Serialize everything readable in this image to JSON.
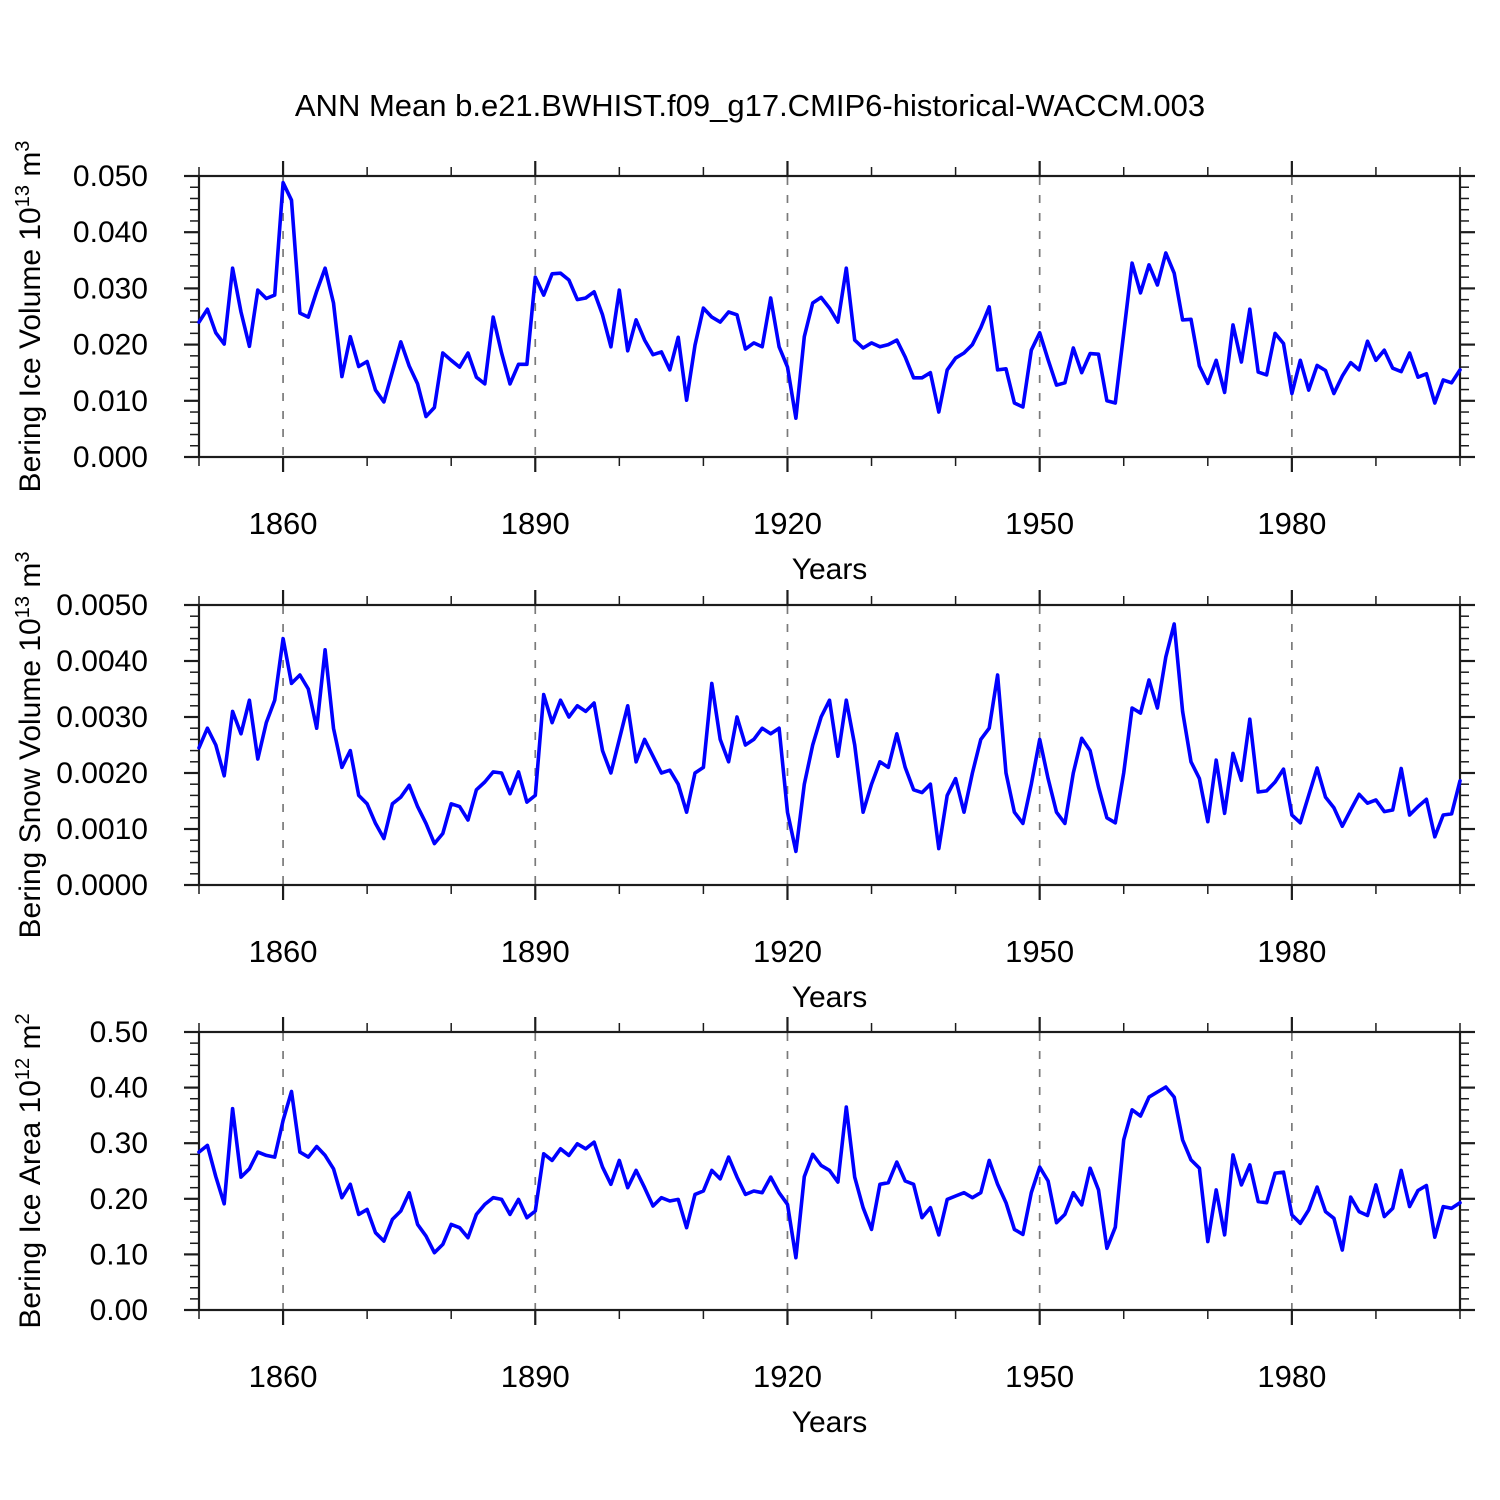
{
  "title": "ANN Mean b.e21.BWHIST.f09_g17.CMIP6-historical-WACCM.003",
  "styles": {
    "line_color": "#0000FF",
    "axis_color": "#1c1c1c",
    "grid_color": "#7a7a7a",
    "text_color": "#000000"
  },
  "chart_data": [
    {
      "type": "line",
      "panel": "bering-ice-volume",
      "ylabel_parts": [
        {
          "text": "Bering Ice Volume 10"
        },
        {
          "text": "13",
          "sup": true
        },
        {
          "text": " m"
        },
        {
          "text": "3",
          "sup": true
        }
      ],
      "xlabel": "Years",
      "x_start": 1850,
      "x_end": 2000,
      "x_step": 1,
      "x_minor_step": 10,
      "x_major_ticks": [
        1860,
        1890,
        1920,
        1950,
        1980
      ],
      "x_tick_labels": [
        "1860",
        "1890",
        "1920",
        "1950",
        "1980"
      ],
      "ylim": [
        0.0,
        0.05
      ],
      "y_major_step": 0.01,
      "y_minor_step": 0.002,
      "y_tick_labels": [
        "0.000",
        "0.010",
        "0.020",
        "0.030",
        "0.040",
        "0.050"
      ],
      "grid": "vertical-dashed-at-major-x",
      "legend": "none",
      "values": [
        0.024,
        0.0263,
        0.0221,
        0.0201,
        0.0336,
        0.0258,
        0.0197,
        0.0297,
        0.0282,
        0.0288,
        0.0488,
        0.0457,
        0.0256,
        0.0249,
        0.0295,
        0.0336,
        0.0274,
        0.0143,
        0.0214,
        0.0161,
        0.017,
        0.0119,
        0.0098,
        0.0152,
        0.0205,
        0.0162,
        0.013,
        0.0072,
        0.0088,
        0.0185,
        0.0172,
        0.016,
        0.0185,
        0.0142,
        0.013,
        0.0249,
        0.0185,
        0.013,
        0.0165,
        0.0165,
        0.032,
        0.0288,
        0.0326,
        0.0327,
        0.0315,
        0.028,
        0.0283,
        0.0294,
        0.0253,
        0.0196,
        0.0297,
        0.0189,
        0.0244,
        0.0208,
        0.0182,
        0.0187,
        0.0155,
        0.0213,
        0.0101,
        0.0199,
        0.0265,
        0.0249,
        0.024,
        0.0258,
        0.0253,
        0.0192,
        0.0203,
        0.0196,
        0.0283,
        0.0196,
        0.016,
        0.0069,
        0.0214,
        0.0274,
        0.0284,
        0.0265,
        0.024,
        0.0336,
        0.0208,
        0.0194,
        0.0203,
        0.0196,
        0.02,
        0.0208,
        0.0178,
        0.0141,
        0.0141,
        0.015,
        0.008,
        0.0155,
        0.0176,
        0.0185,
        0.02,
        0.023,
        0.0267,
        0.0155,
        0.0157,
        0.0096,
        0.0089,
        0.019,
        0.0221,
        0.0173,
        0.0128,
        0.0132,
        0.0194,
        0.015,
        0.0184,
        0.0183,
        0.01,
        0.0096,
        0.022,
        0.0345,
        0.0292,
        0.0342,
        0.0306,
        0.0363,
        0.0327,
        0.0244,
        0.0245,
        0.0162,
        0.0131,
        0.0172,
        0.0115,
        0.0235,
        0.0169,
        0.0263,
        0.0151,
        0.0146,
        0.022,
        0.0202,
        0.0113,
        0.0172,
        0.0119,
        0.0163,
        0.0154,
        0.0113,
        0.0144,
        0.0168,
        0.0155,
        0.0206,
        0.0172,
        0.019,
        0.0158,
        0.0152,
        0.0185,
        0.0142,
        0.0148,
        0.0096,
        0.0137,
        0.0132,
        0.0155
      ]
    },
    {
      "type": "line",
      "panel": "bering-snow-volume",
      "ylabel_parts": [
        {
          "text": "Bering Snow Volume 10"
        },
        {
          "text": "13",
          "sup": true
        },
        {
          "text": " m"
        },
        {
          "text": "3",
          "sup": true
        }
      ],
      "xlabel": "Years",
      "x_start": 1850,
      "x_end": 2000,
      "x_step": 1,
      "x_minor_step": 10,
      "x_major_ticks": [
        1860,
        1890,
        1920,
        1950,
        1980
      ],
      "x_tick_labels": [
        "1860",
        "1890",
        "1920",
        "1950",
        "1980"
      ],
      "ylim": [
        0.0,
        0.005
      ],
      "y_major_step": 0.001,
      "y_minor_step": 0.0002,
      "y_tick_labels": [
        "0.0000",
        "0.0010",
        "0.0020",
        "0.0030",
        "0.0040",
        "0.0050"
      ],
      "grid": "vertical-dashed-at-major-x",
      "legend": "none",
      "values": [
        0.00245,
        0.0028,
        0.0025,
        0.00195,
        0.0031,
        0.0027,
        0.0033,
        0.00225,
        0.0029,
        0.0033,
        0.0044,
        0.0036,
        0.00375,
        0.0035,
        0.0028,
        0.0042,
        0.0028,
        0.0021,
        0.0024,
        0.0016,
        0.00145,
        0.0011,
        0.00083,
        0.00145,
        0.00157,
        0.00178,
        0.0014,
        0.0011,
        0.00074,
        0.00092,
        0.00145,
        0.0014,
        0.00116,
        0.0017,
        0.00184,
        0.00202,
        0.002,
        0.00163,
        0.00202,
        0.00148,
        0.0016,
        0.0034,
        0.0029,
        0.0033,
        0.003,
        0.0032,
        0.0031,
        0.00325,
        0.0024,
        0.002,
        0.0026,
        0.0032,
        0.0022,
        0.0026,
        0.0023,
        0.002,
        0.00205,
        0.0018,
        0.0013,
        0.002,
        0.0021,
        0.0036,
        0.0026,
        0.0022,
        0.003,
        0.0025,
        0.0026,
        0.0028,
        0.0027,
        0.0028,
        0.0013,
        0.0006,
        0.0018,
        0.0025,
        0.003,
        0.0033,
        0.0023,
        0.0033,
        0.0025,
        0.0013,
        0.0018,
        0.0022,
        0.0021,
        0.0027,
        0.0021,
        0.0017,
        0.00165,
        0.0018,
        0.00065,
        0.0016,
        0.0019,
        0.0013,
        0.002,
        0.0026,
        0.0028,
        0.00375,
        0.002,
        0.0013,
        0.0011,
        0.0018,
        0.0026,
        0.0019,
        0.0013,
        0.0011,
        0.002,
        0.00262,
        0.0024,
        0.00175,
        0.0012,
        0.00111,
        0.002,
        0.00316,
        0.00307,
        0.00366,
        0.00316,
        0.00407,
        0.00466,
        0.0031,
        0.0022,
        0.0019,
        0.00113,
        0.00223,
        0.00128,
        0.00235,
        0.00187,
        0.00296,
        0.00166,
        0.00168,
        0.00184,
        0.00207,
        0.00125,
        0.00111,
        0.0016,
        0.00209,
        0.00157,
        0.00138,
        0.00105,
        0.00134,
        0.00162,
        0.00146,
        0.00152,
        0.00131,
        0.00134,
        0.00208,
        0.00125,
        0.0014,
        0.00153,
        0.00086,
        0.00125,
        0.00127,
        0.00186
      ]
    },
    {
      "type": "line",
      "panel": "bering-ice-area",
      "ylabel_parts": [
        {
          "text": "Bering Ice Area 10"
        },
        {
          "text": "12",
          "sup": true
        },
        {
          "text": " m"
        },
        {
          "text": "2",
          "sup": true
        }
      ],
      "xlabel": "Years",
      "x_start": 1850,
      "x_end": 2000,
      "x_step": 1,
      "x_minor_step": 10,
      "x_major_ticks": [
        1860,
        1890,
        1920,
        1950,
        1980
      ],
      "x_tick_labels": [
        "1860",
        "1890",
        "1920",
        "1950",
        "1980"
      ],
      "ylim": [
        0.0,
        0.5
      ],
      "y_major_step": 0.1,
      "y_minor_step": 0.02,
      "y_tick_labels": [
        "0.00",
        "0.10",
        "0.20",
        "0.30",
        "0.40",
        "0.50"
      ],
      "grid": "vertical-dashed-at-major-x",
      "legend": "none",
      "values": [
        0.284,
        0.296,
        0.24,
        0.191,
        0.362,
        0.239,
        0.254,
        0.284,
        0.278,
        0.275,
        0.341,
        0.393,
        0.284,
        0.275,
        0.294,
        0.278,
        0.254,
        0.202,
        0.226,
        0.172,
        0.181,
        0.139,
        0.124,
        0.163,
        0.178,
        0.211,
        0.154,
        0.133,
        0.103,
        0.118,
        0.154,
        0.148,
        0.13,
        0.172,
        0.19,
        0.202,
        0.199,
        0.172,
        0.199,
        0.166,
        0.178,
        0.281,
        0.269,
        0.29,
        0.278,
        0.299,
        0.29,
        0.302,
        0.257,
        0.226,
        0.269,
        0.22,
        0.251,
        0.22,
        0.187,
        0.202,
        0.196,
        0.199,
        0.148,
        0.208,
        0.214,
        0.251,
        0.236,
        0.275,
        0.239,
        0.208,
        0.214,
        0.211,
        0.239,
        0.211,
        0.19,
        0.094,
        0.24,
        0.28,
        0.26,
        0.251,
        0.23,
        0.365,
        0.239,
        0.184,
        0.145,
        0.226,
        0.229,
        0.266,
        0.232,
        0.226,
        0.166,
        0.184,
        0.135,
        0.199,
        0.205,
        0.211,
        0.202,
        0.211,
        0.269,
        0.226,
        0.193,
        0.145,
        0.136,
        0.211,
        0.257,
        0.232,
        0.157,
        0.172,
        0.211,
        0.189,
        0.255,
        0.216,
        0.111,
        0.149,
        0.306,
        0.36,
        0.349,
        0.383,
        0.392,
        0.401,
        0.383,
        0.306,
        0.27,
        0.255,
        0.123,
        0.216,
        0.135,
        0.279,
        0.225,
        0.261,
        0.195,
        0.193,
        0.246,
        0.248,
        0.171,
        0.156,
        0.18,
        0.221,
        0.177,
        0.165,
        0.108,
        0.203,
        0.177,
        0.17,
        0.225,
        0.168,
        0.183,
        0.251,
        0.186,
        0.215,
        0.224,
        0.131,
        0.186,
        0.183,
        0.193
      ]
    }
  ]
}
